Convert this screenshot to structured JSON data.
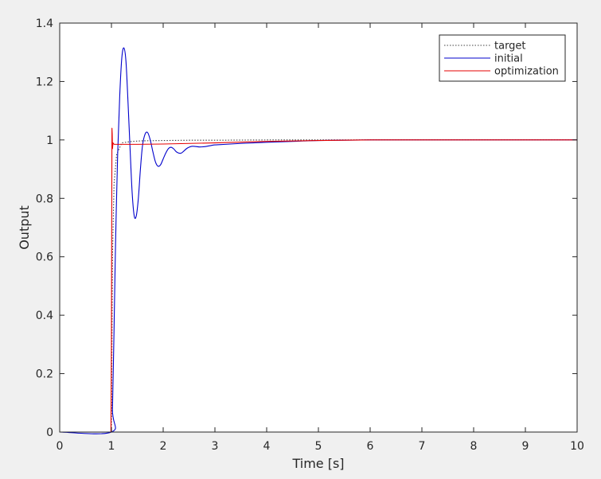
{
  "chart_data": {
    "type": "line",
    "xlabel": "Time [s]",
    "ylabel": "Output",
    "xlim": [
      0,
      10
    ],
    "ylim": [
      0,
      1.4
    ],
    "xticks": [
      "0",
      "1",
      "2",
      "3",
      "4",
      "5",
      "6",
      "7",
      "8",
      "9",
      "10"
    ],
    "yticks": [
      "0",
      "0.2",
      "0.4",
      "0.6",
      "0.8",
      "1",
      "1.2",
      "1.4"
    ],
    "grid": false,
    "legend_position": "top-right",
    "series": [
      {
        "name": "target",
        "color": "#404040",
        "style": "dotted",
        "x": [
          0,
          1.0,
          1.0,
          1.02,
          1.05,
          1.1,
          1.2,
          1.4,
          1.6,
          2.0,
          2.5,
          3.0,
          4.0,
          5.0,
          6.0,
          7.0,
          8.0,
          9.0,
          10.0
        ],
        "y": [
          0,
          0,
          0.02,
          0.6,
          0.85,
          0.95,
          0.99,
          0.995,
          0.997,
          0.998,
          0.999,
          0.999,
          1.0,
          1.0,
          1.0,
          1.0,
          1.0,
          1.0,
          1.0
        ]
      },
      {
        "name": "initial",
        "color": "#0000cc",
        "style": "solid",
        "x": [
          0,
          1.0,
          1.02,
          1.05,
          1.08,
          1.12,
          1.16,
          1.2,
          1.24,
          1.28,
          1.32,
          1.36,
          1.4,
          1.44,
          1.48,
          1.52,
          1.56,
          1.6,
          1.65,
          1.7,
          1.75,
          1.8,
          1.85,
          1.9,
          1.95,
          2.0,
          2.05,
          2.1,
          2.15,
          2.2,
          2.25,
          2.3,
          2.35,
          2.4,
          2.45,
          2.5,
          2.55,
          2.6,
          2.7,
          2.8,
          2.9,
          3.0,
          3.2,
          3.5,
          4.0,
          4.5,
          5.0,
          6.0,
          7.0,
          8.0,
          9.0,
          10.0
        ],
        "y": [
          0,
          0,
          0.08,
          0.35,
          0.65,
          0.95,
          1.15,
          1.28,
          1.315,
          1.27,
          1.13,
          0.97,
          0.82,
          0.74,
          0.74,
          0.8,
          0.9,
          0.98,
          1.02,
          1.025,
          1.0,
          0.96,
          0.925,
          0.91,
          0.915,
          0.935,
          0.955,
          0.97,
          0.975,
          0.97,
          0.96,
          0.955,
          0.955,
          0.962,
          0.97,
          0.975,
          0.978,
          0.978,
          0.976,
          0.977,
          0.98,
          0.983,
          0.985,
          0.988,
          0.992,
          0.995,
          0.998,
          1.0,
          1.0,
          1.0,
          1.0,
          1.0
        ]
      },
      {
        "name": "optimization",
        "color": "#e60000",
        "style": "solid",
        "x": [
          0,
          0.99,
          1.0,
          1.005,
          1.01,
          1.015,
          1.02,
          1.03,
          1.05,
          1.1,
          1.2,
          1.5,
          2.0,
          3.0,
          4.0,
          5.0,
          6.0,
          7.0,
          8.0,
          9.0,
          10.0
        ],
        "y": [
          0,
          0,
          0.3,
          0.7,
          1.04,
          1.02,
          0.97,
          0.99,
          0.985,
          0.985,
          0.985,
          0.985,
          0.986,
          0.99,
          0.995,
          0.998,
          1.0,
          1.0,
          1.0,
          1.0,
          1.0
        ]
      }
    ]
  }
}
